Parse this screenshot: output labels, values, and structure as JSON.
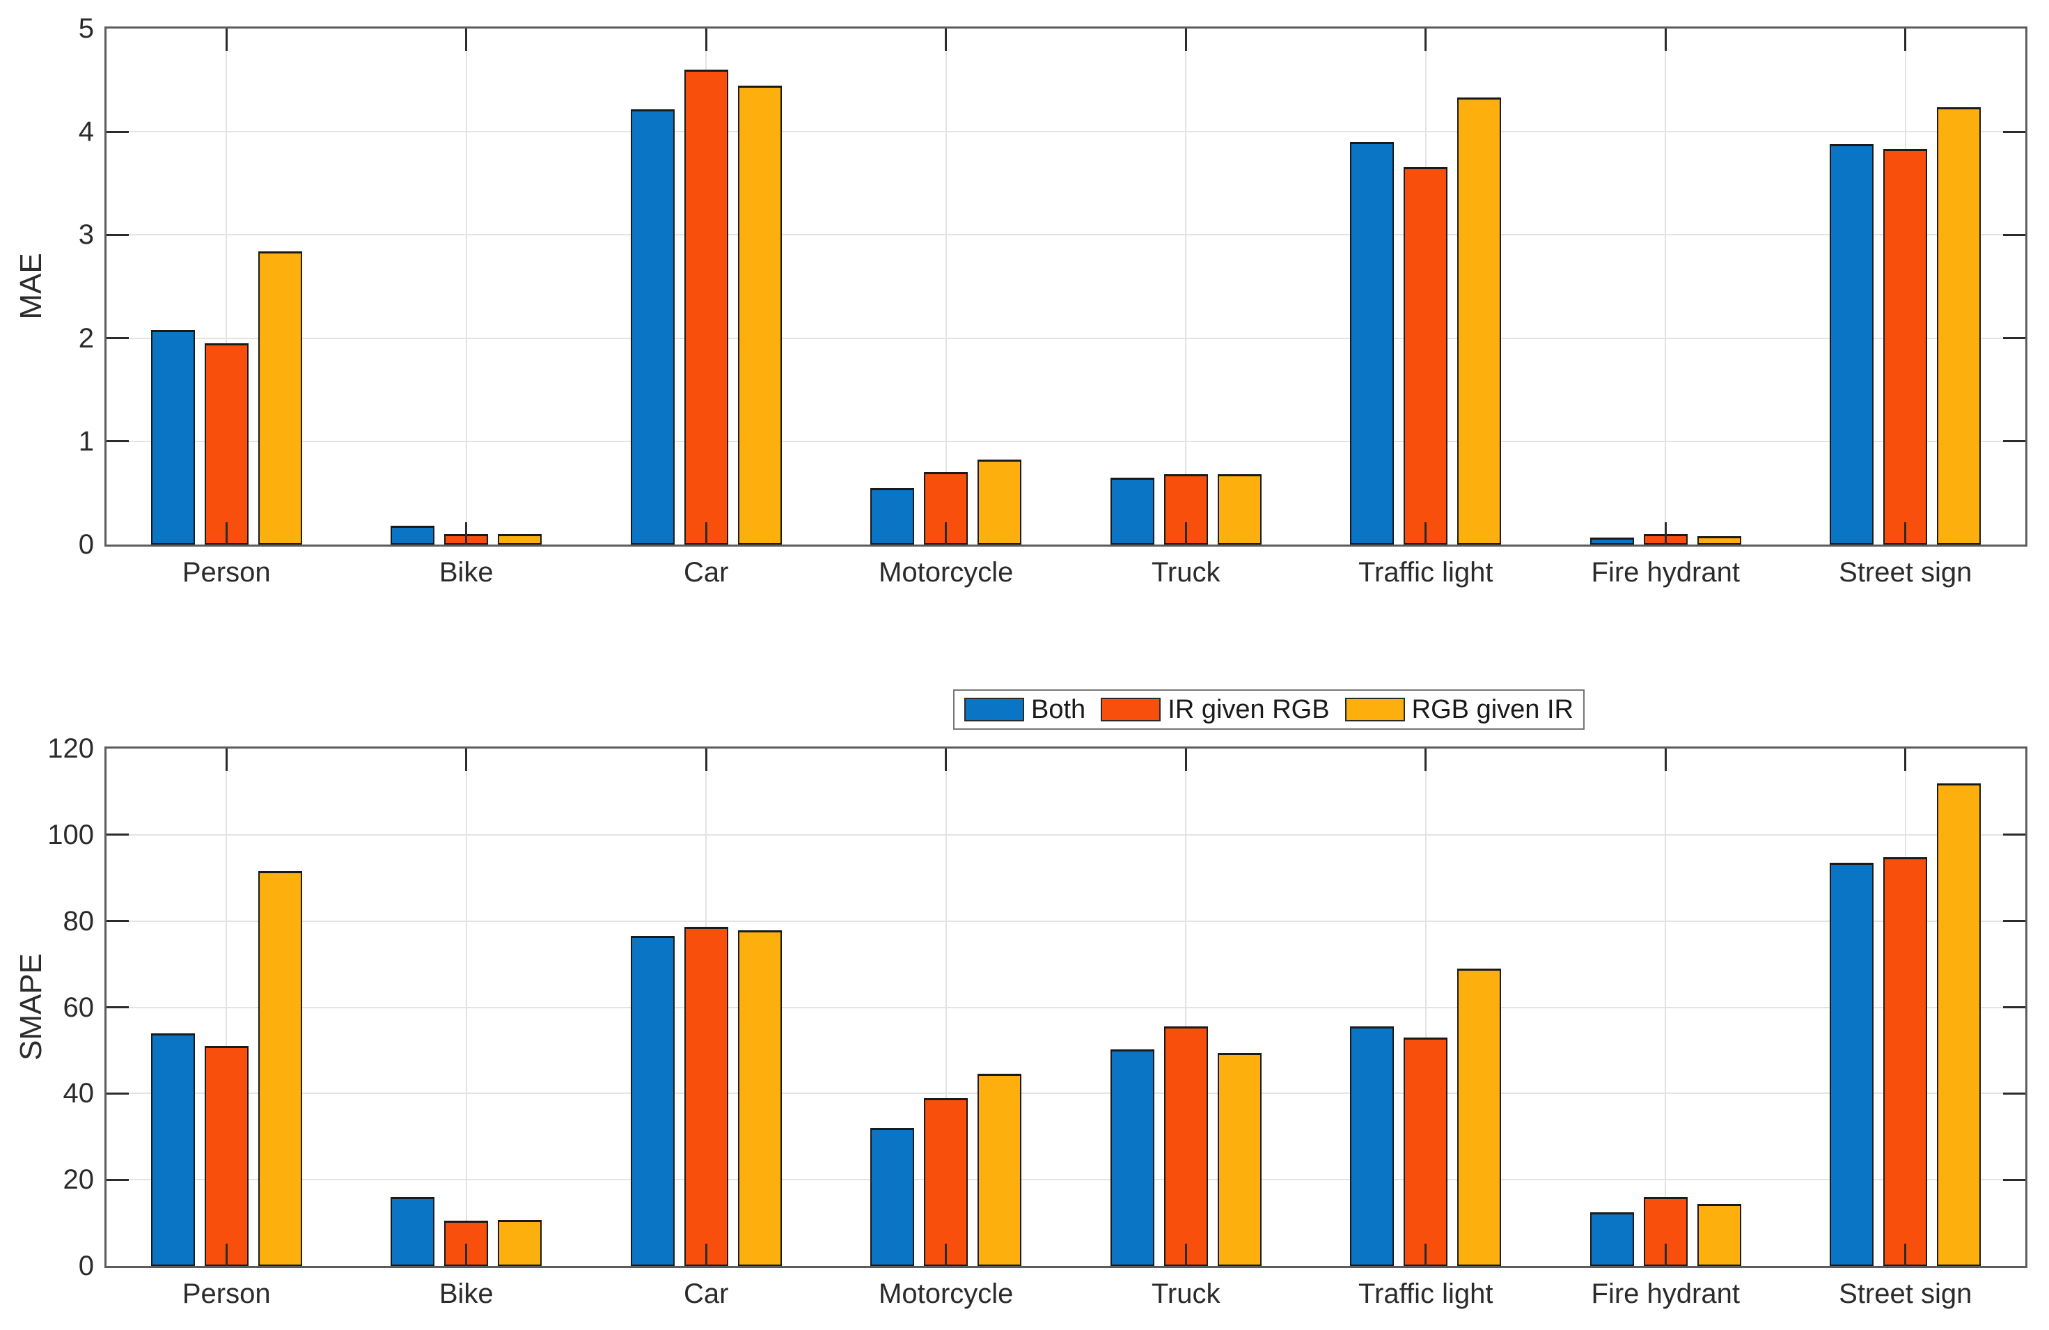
{
  "colors": {
    "series": [
      "#0A75C4",
      "#F94F0C",
      "#FDB00D"
    ],
    "bar_edge": "#1a1a1a",
    "axis_border": "#5c5c5c",
    "tick": "#2b2b2b",
    "gridline": "#e3e3e3",
    "text": "#2b2b2b",
    "legend_border": "#757575",
    "background": "#ffffff"
  },
  "legend": {
    "entries": [
      {
        "label": "Both",
        "color": "#0A75C4"
      },
      {
        "label": "IR given RGB",
        "color": "#F94F0C"
      },
      {
        "label": "RGB given IR",
        "color": "#FDB00D"
      }
    ],
    "position": "between-charts-center"
  },
  "chart_data": [
    {
      "type": "bar",
      "title": "",
      "ylabel": "MAE",
      "xlabel": "",
      "ylim": [
        0,
        5
      ],
      "yticks": [
        0,
        1,
        2,
        3,
        4,
        5
      ],
      "grid": true,
      "categories": [
        "Person",
        "Bike",
        "Car",
        "Motorcycle",
        "Truck",
        "Traffic light",
        "Fire hydrant",
        "Street sign"
      ],
      "series": [
        {
          "name": "Both",
          "values": [
            2.08,
            0.18,
            4.22,
            0.55,
            0.65,
            3.9,
            0.07,
            3.88
          ]
        },
        {
          "name": "IR given RGB",
          "values": [
            1.95,
            0.1,
            4.6,
            0.7,
            0.68,
            3.66,
            0.1,
            3.83
          ]
        },
        {
          "name": "RGB given IR",
          "values": [
            2.84,
            0.1,
            4.45,
            0.82,
            0.68,
            4.33,
            0.08,
            4.24
          ]
        }
      ]
    },
    {
      "type": "bar",
      "title": "",
      "ylabel": "SMAPE",
      "xlabel": "",
      "ylim": [
        0,
        120
      ],
      "yticks": [
        0,
        20,
        40,
        60,
        80,
        100,
        120
      ],
      "grid": true,
      "categories": [
        "Person",
        "Bike",
        "Car",
        "Motorcycle",
        "Truck",
        "Traffic light",
        "Fire hydrant",
        "Street sign"
      ],
      "series": [
        {
          "name": "Both",
          "values": [
            54.0,
            16.0,
            76.5,
            32.0,
            50.3,
            55.5,
            12.5,
            93.5
          ]
        },
        {
          "name": "IR given RGB",
          "values": [
            51.0,
            10.5,
            78.7,
            39.0,
            55.5,
            53.0,
            16.0,
            94.8
          ]
        },
        {
          "name": "RGB given IR",
          "values": [
            91.5,
            10.7,
            77.8,
            44.5,
            49.5,
            69.0,
            14.3,
            112.0
          ]
        }
      ]
    }
  ]
}
